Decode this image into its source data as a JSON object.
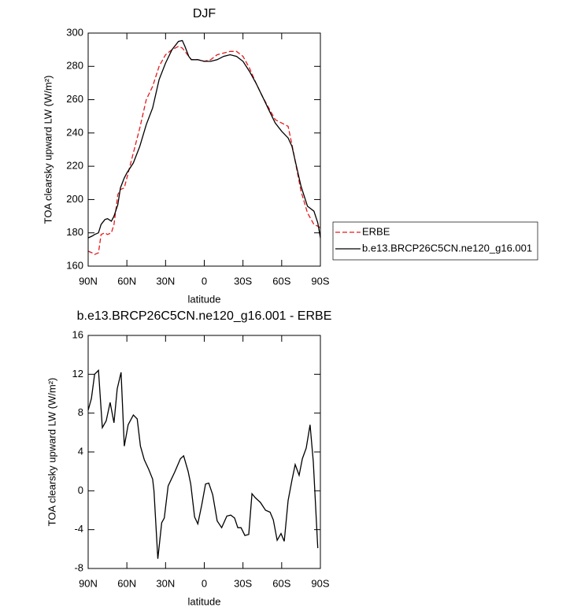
{
  "chart_data": [
    {
      "type": "line",
      "title": "DJF",
      "xlabel": "latitude",
      "ylabel": "TOA clearsky upward LW (W/m²)",
      "x": [
        90,
        87,
        85,
        82,
        80,
        77,
        75,
        72,
        70,
        67,
        65,
        62,
        60,
        55,
        50,
        45,
        40,
        35,
        30,
        25,
        20,
        17,
        15,
        12,
        10,
        5,
        0,
        -5,
        -10,
        -15,
        -20,
        -25,
        -30,
        -35,
        -40,
        -45,
        -50,
        -55,
        -60,
        -65,
        -68,
        -70,
        -75,
        -80,
        -85,
        -88,
        -90
      ],
      "series": [
        {
          "name": "ERBE",
          "color": "#e41a1c",
          "style": "dashed",
          "values": [
            169,
            168,
            167,
            168,
            179,
            180,
            179,
            180,
            185,
            203,
            206,
            207,
            213,
            228,
            243,
            260,
            268,
            280,
            287,
            290,
            292,
            291,
            289,
            286,
            284,
            284,
            283,
            284,
            287,
            288,
            289,
            289,
            286,
            279,
            270,
            262,
            255,
            248,
            246,
            244,
            233,
            225,
            205,
            192,
            185,
            184,
            183
          ]
        },
        {
          "name": "b.e13.BRCP26C5CN.ne120_g16.001",
          "color": "#000000",
          "style": "solid",
          "values": [
            177,
            178,
            179,
            180,
            185,
            188,
            188.5,
            187,
            190,
            197,
            207,
            213,
            216,
            222,
            232,
            245,
            255,
            272,
            282,
            290,
            295,
            295.5,
            292,
            286,
            284,
            284,
            283,
            283,
            284,
            286,
            287,
            286,
            283,
            277,
            270,
            262,
            254,
            246,
            241,
            237,
            232,
            225,
            208,
            196,
            193,
            186,
            177
          ]
        }
      ],
      "xlim": [
        90,
        -90
      ],
      "xticks": [
        {
          "value": 90,
          "label": "90N"
        },
        {
          "value": 60,
          "label": "60N"
        },
        {
          "value": 30,
          "label": "30N"
        },
        0,
        {
          "value": -30,
          "label": "30S"
        },
        {
          "value": -60,
          "label": "60S"
        },
        {
          "value": -90,
          "label": "90S"
        }
      ],
      "ylim": [
        160,
        300
      ],
      "yticks": [
        160,
        180,
        200,
        220,
        240,
        260,
        280,
        300
      ],
      "legend": "right"
    },
    {
      "type": "line",
      "title": "b.e13.BRCP26C5CN.ne120_g16.001 - ERBE",
      "xlabel": "latitude",
      "ylabel": "TOA clearsky upward LW (W/m²)",
      "x": [
        90,
        87.5,
        85,
        82,
        79,
        76,
        73,
        70,
        67.5,
        64.5,
        62,
        59,
        55,
        52,
        49.5,
        46.5,
        43,
        40,
        39,
        36,
        33,
        31,
        28,
        23,
        18.5,
        16,
        12.5,
        10.5,
        7.5,
        5,
        2,
        -1,
        -3.5,
        -6.5,
        -10,
        -13.5,
        -17.5,
        -20.5,
        -23.5,
        -26,
        -28.5,
        -31.5,
        -34.5,
        -37,
        -39.5,
        -43.5,
        -47.5,
        -51,
        -53.5,
        -56.5,
        -59.5,
        -62,
        -65,
        -68,
        -70.5,
        -73.5,
        -76,
        -79,
        -82,
        -84.5,
        -88
      ],
      "series": [
        {
          "color": "#000000",
          "style": "solid",
          "values": [
            8.3,
            9.5,
            12,
            12.4,
            6.5,
            7.2,
            9.1,
            7,
            10.5,
            12.2,
            4.6,
            6.8,
            7.8,
            7.4,
            4.6,
            3.2,
            2.2,
            1.2,
            0,
            -7,
            -3.3,
            -2.8,
            0.5,
            1.9,
            3.3,
            3.6,
            2,
            0.7,
            -2.7,
            -3.4,
            -1.5,
            0.7,
            0.8,
            -0.4,
            -3.1,
            -3.8,
            -2.6,
            -2.5,
            -2.8,
            -3.8,
            -3.8,
            -4.6,
            -4.5,
            -0.3,
            -0.7,
            -1.2,
            -2,
            -2.2,
            -3,
            -5.1,
            -4.4,
            -5.2,
            -1,
            1.1,
            2.7,
            1.6,
            3.3,
            4.4,
            6.8,
            3,
            -5.9
          ]
        }
      ],
      "xlim": [
        90,
        -90
      ],
      "xticks": [
        {
          "value": 90,
          "label": "90N"
        },
        {
          "value": 60,
          "label": "60N"
        },
        {
          "value": 30,
          "label": "30N"
        },
        0,
        {
          "value": -30,
          "label": "30S"
        },
        {
          "value": -60,
          "label": "60S"
        },
        {
          "value": -90,
          "label": "90S"
        }
      ],
      "ylim": [
        -8,
        16
      ],
      "yticks": [
        -8,
        -4,
        0,
        4,
        8,
        12,
        16
      ]
    }
  ]
}
